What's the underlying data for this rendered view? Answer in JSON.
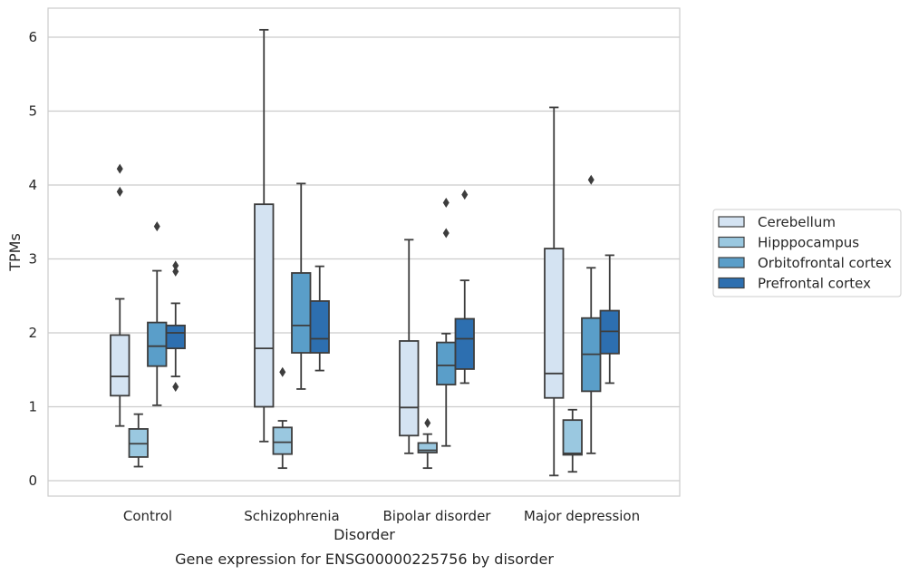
{
  "chart_data": {
    "type": "box",
    "title": "",
    "caption": "Gene expression for ENSG00000225756 by disorder",
    "xlabel": "Disorder",
    "ylabel": "TPMs",
    "ylim": [
      -0.2,
      6.4
    ],
    "yticks": [
      0,
      1,
      2,
      3,
      4,
      5,
      6
    ],
    "grid": "horizontal",
    "legend_position": "right",
    "categories": [
      "Control",
      "Schizophrenia",
      "Bipolar disorder",
      "Major depression"
    ],
    "series": [
      {
        "name": "Cerebellum",
        "color": "#d4e3f2",
        "boxes": [
          {
            "whislo": 0.74,
            "q1": 1.15,
            "med": 1.41,
            "q3": 1.97,
            "whishi": 2.46,
            "fliers": [
              4.22,
              3.91
            ]
          },
          {
            "whislo": 0.53,
            "q1": 1.0,
            "med": 1.79,
            "q3": 3.74,
            "whishi": 6.1,
            "fliers": []
          },
          {
            "whislo": 0.37,
            "q1": 0.61,
            "med": 0.99,
            "q3": 1.89,
            "whishi": 3.26,
            "fliers": []
          },
          {
            "whislo": 0.07,
            "q1": 1.12,
            "med": 1.45,
            "q3": 3.14,
            "whishi": 5.05,
            "fliers": []
          }
        ]
      },
      {
        "name": "Hipppocampus",
        "color": "#9ac8e0",
        "boxes": [
          {
            "whislo": 0.19,
            "q1": 0.32,
            "med": 0.5,
            "q3": 0.7,
            "whishi": 0.9,
            "fliers": []
          },
          {
            "whislo": 0.17,
            "q1": 0.36,
            "med": 0.52,
            "q3": 0.72,
            "whishi": 0.81,
            "fliers": [
              1.47
            ]
          },
          {
            "whislo": 0.17,
            "q1": 0.38,
            "med": 0.41,
            "q3": 0.51,
            "whishi": 0.63,
            "fliers": [
              0.78
            ]
          },
          {
            "whislo": 0.12,
            "q1": 0.35,
            "med": 0.37,
            "q3": 0.82,
            "whishi": 0.96,
            "fliers": []
          }
        ]
      },
      {
        "name": "Orbitofrontal cortex",
        "color": "#5a9ec9",
        "boxes": [
          {
            "whislo": 1.02,
            "q1": 1.55,
            "med": 1.82,
            "q3": 2.14,
            "whishi": 2.84,
            "fliers": [
              3.44
            ]
          },
          {
            "whislo": 1.24,
            "q1": 1.73,
            "med": 2.1,
            "q3": 2.81,
            "whishi": 4.02,
            "fliers": []
          },
          {
            "whislo": 0.47,
            "q1": 1.3,
            "med": 1.56,
            "q3": 1.87,
            "whishi": 1.99,
            "fliers": [
              3.76,
              3.35
            ]
          },
          {
            "whislo": 0.37,
            "q1": 1.21,
            "med": 1.71,
            "q3": 2.2,
            "whishi": 2.88,
            "fliers": [
              4.07
            ]
          }
        ]
      },
      {
        "name": "Prefrontal cortex",
        "color": "#2d6fb0",
        "boxes": [
          {
            "whislo": 1.41,
            "q1": 1.79,
            "med": 2.0,
            "q3": 2.1,
            "whishi": 2.4,
            "fliers": [
              2.91,
              2.83,
              1.27
            ]
          },
          {
            "whislo": 1.49,
            "q1": 1.73,
            "med": 1.92,
            "q3": 2.43,
            "whishi": 2.9,
            "fliers": []
          },
          {
            "whislo": 1.32,
            "q1": 1.51,
            "med": 1.92,
            "q3": 2.19,
            "whishi": 2.71,
            "fliers": [
              3.87
            ]
          },
          {
            "whislo": 1.32,
            "q1": 1.72,
            "med": 2.02,
            "q3": 2.3,
            "whishi": 3.05,
            "fliers": []
          }
        ]
      }
    ]
  },
  "colors": {
    "line": "#3d3d3d",
    "grid": "#cccccc",
    "frame": "#cccccc"
  }
}
